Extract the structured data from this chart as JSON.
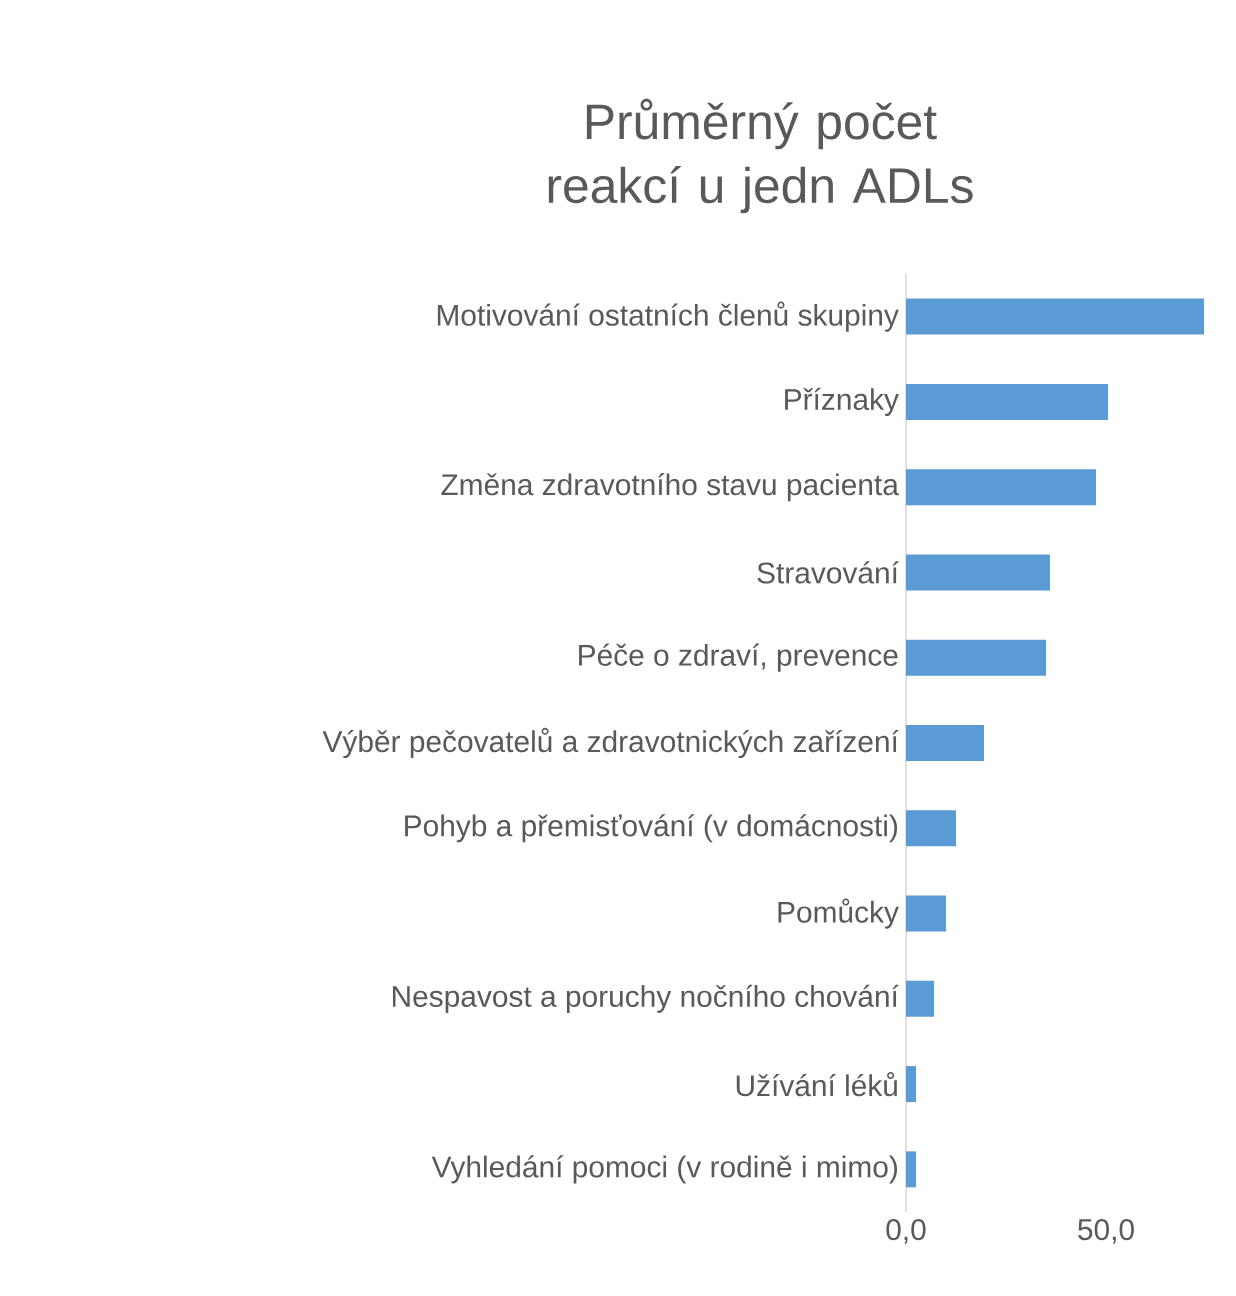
{
  "chart_data": {
    "type": "bar",
    "orientation": "horizontal",
    "title": "Průměrný počet reakcí u jedn ADLs",
    "categories": [
      "Motivování ostatních členů skupiny",
      "Příznaky",
      "Změna zdravotního stavu pacienta",
      "Stravování",
      "Péče o zdraví, prevence",
      "Výběr pečovatelů a zdravotnických zařízení",
      "Pohyb a přemisťování (v domácnosti)",
      "Pomůcky",
      "Nespavost a poruchy nočního chování",
      "Užívání léků",
      "Vyhledání pomoci (v rodině i mimo)"
    ],
    "values": [
      74.5,
      50.5,
      47.5,
      36,
      35,
      19.5,
      12.5,
      10,
      7,
      2.5,
      2.5
    ],
    "color": "#5b9bd5",
    "xlim": [
      0,
      75
    ],
    "xticks": [
      {
        "value": 0,
        "label": "0,0"
      },
      {
        "value": 50,
        "label": "50,0"
      }
    ],
    "grid": false
  }
}
